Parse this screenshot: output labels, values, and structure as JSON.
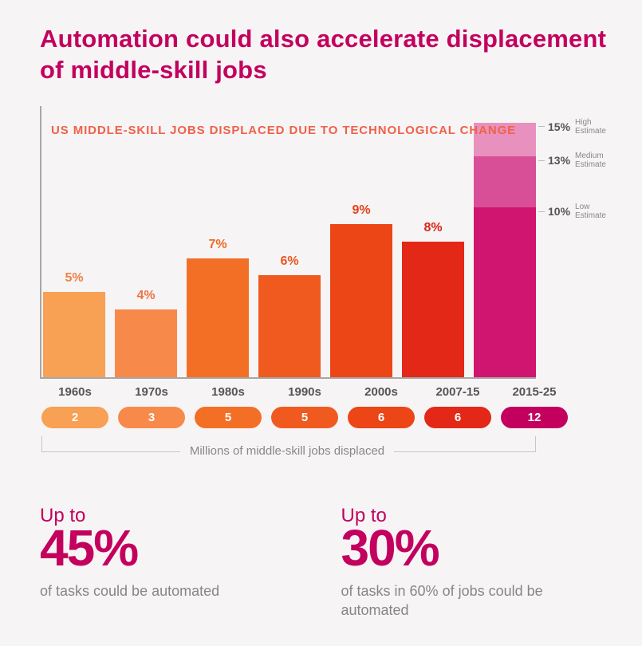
{
  "title": "Automation could also accelerate displacement of middle-skill jobs",
  "chart": {
    "type": "bar",
    "subtitle": "US MIDDLE-SKILL JOBS DISPLACED DUE TO TECHNOLOGICAL CHANGE",
    "subtitle_color": "#ef6149",
    "background_color": "#f6f4f5",
    "axis_color": "#a9a6a7",
    "ylim_pct": [
      0,
      16
    ],
    "bars": [
      {
        "period": "1960s",
        "pct": 5,
        "millions": 2,
        "color": "#f8a054",
        "pill_color": "#f8a054",
        "label_color": "#f08048"
      },
      {
        "period": "1970s",
        "pct": 4,
        "millions": 3,
        "color": "#f78a4a",
        "pill_color": "#f78a4a",
        "label_color": "#ee7440"
      },
      {
        "period": "1980s",
        "pct": 7,
        "millions": 5,
        "color": "#f46f26",
        "pill_color": "#f46f26",
        "label_color": "#ee6a26"
      },
      {
        "period": "1990s",
        "pct": 6,
        "millions": 5,
        "color": "#f05a1f",
        "pill_color": "#f05a1f",
        "label_color": "#e95520"
      },
      {
        "period": "2000s",
        "pct": 9,
        "millions": 6,
        "color": "#ec4617",
        "pill_color": "#ec4617",
        "label_color": "#e4411a"
      },
      {
        "period": "2007-15",
        "pct": 8,
        "millions": 6,
        "color": "#e42818",
        "pill_color": "#e42818",
        "label_color": "#da251a"
      }
    ],
    "projection": {
      "period": "2015-25",
      "millions": 12,
      "pill_color": "#c3005e",
      "segments": [
        {
          "pct": 10,
          "label": "Low Estimate",
          "color": "#d01570"
        },
        {
          "pct": 13,
          "label": "Medium Estimate",
          "color": "#d94f97"
        },
        {
          "pct": 15,
          "label": "High Estimate",
          "color": "#e891be"
        }
      ]
    },
    "legend": "Millions of middle-skill jobs displaced"
  },
  "stats": [
    {
      "up": "Up to",
      "big": "45%",
      "desc": "of tasks could be automated"
    },
    {
      "up": "Up to",
      "big": "30%",
      "desc": "of tasks in 60% of jobs could be automated"
    }
  ],
  "colors": {
    "title": "#c3005e",
    "text_muted": "#8a8788"
  }
}
